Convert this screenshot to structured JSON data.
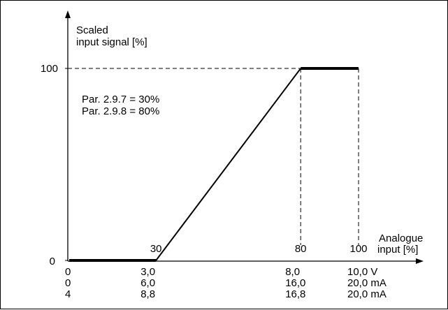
{
  "chart_data": {
    "type": "line",
    "ylabel_lines": [
      "Scaled",
      "input signal [%]"
    ],
    "xlabel_lines": [
      "Analogue",
      "input [%]"
    ],
    "x_ticks": [
      {
        "value": 30,
        "label": "30"
      },
      {
        "value": 80,
        "label": "80"
      },
      {
        "value": 100,
        "label": "100"
      }
    ],
    "y_ticks": [
      {
        "value": 0,
        "label": "0"
      },
      {
        "value": 100,
        "label": "100"
      }
    ],
    "xlim": [
      0,
      100
    ],
    "ylim": [
      0,
      100
    ],
    "series": [
      {
        "x": [
          0,
          30,
          80,
          100
        ],
        "y": [
          0,
          0,
          100,
          100
        ]
      }
    ],
    "annotations": [
      "Par. 2.9.7 = 30%",
      "Par. 2.9.8 = 80%"
    ],
    "secondary_scales": [
      {
        "values": [
          0,
          30,
          80,
          100
        ],
        "labels": [
          "0",
          "3,0",
          "8,0",
          "10,0 V"
        ]
      },
      {
        "values": [
          0,
          30,
          80,
          100
        ],
        "labels": [
          "0",
          "6,0",
          "16,0",
          "20,0 mA"
        ]
      },
      {
        "values": [
          0,
          30,
          80,
          100
        ],
        "labels": [
          "4",
          "8,8",
          "16,8",
          "20,0 mA"
        ]
      }
    ],
    "grid": false,
    "legend": "none",
    "colors": {
      "line": "#000000",
      "guide": "#000000",
      "background": "#ffffff"
    }
  }
}
